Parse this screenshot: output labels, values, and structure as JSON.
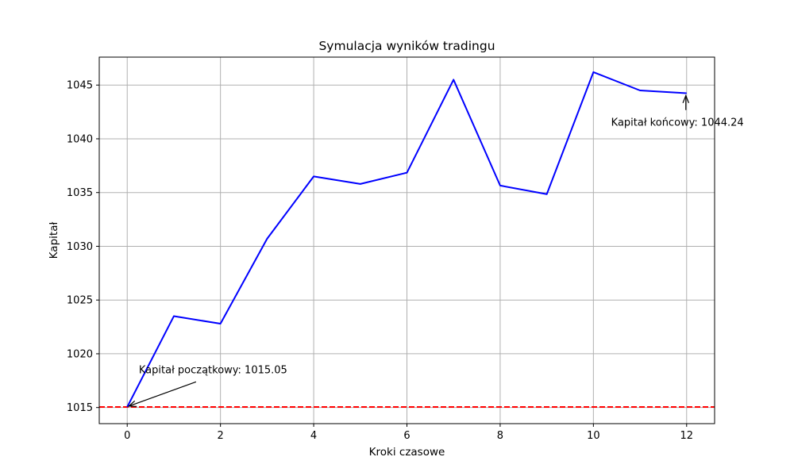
{
  "chart_data": {
    "type": "line",
    "title": "Symulacja wyników tradingu",
    "xlabel": "Kroki czasowe",
    "ylabel": "Kapitał",
    "xlim": [
      -0.6,
      12.6
    ],
    "ylim": [
      1013.5,
      1047.6
    ],
    "xticks": [
      0,
      2,
      4,
      6,
      8,
      10,
      12
    ],
    "yticks": [
      1015,
      1020,
      1025,
      1030,
      1035,
      1040,
      1045
    ],
    "grid": true,
    "series": [
      {
        "color": "#0000ff",
        "x": [
          0,
          1,
          2,
          3,
          4,
          5,
          6,
          7,
          8,
          9,
          10,
          11,
          12
        ],
        "values": [
          1015.05,
          1023.5,
          1022.8,
          1030.7,
          1036.5,
          1035.8,
          1036.85,
          1045.5,
          1035.65,
          1034.85,
          1046.2,
          1044.5,
          1044.24
        ]
      }
    ],
    "reference_line": {
      "y": 1015.05,
      "color": "#ff0000",
      "style": "dashed"
    },
    "annotations": [
      {
        "text": "Kapitał początkowy: 1015.05",
        "point": [
          0,
          1015.05
        ],
        "text_at": [
          0.25,
          1018.2
        ]
      },
      {
        "text": "Kapitał końcowy: 1044.24",
        "point": [
          12,
          1044.24
        ],
        "text_at": [
          10.38,
          1041.2
        ]
      }
    ]
  }
}
